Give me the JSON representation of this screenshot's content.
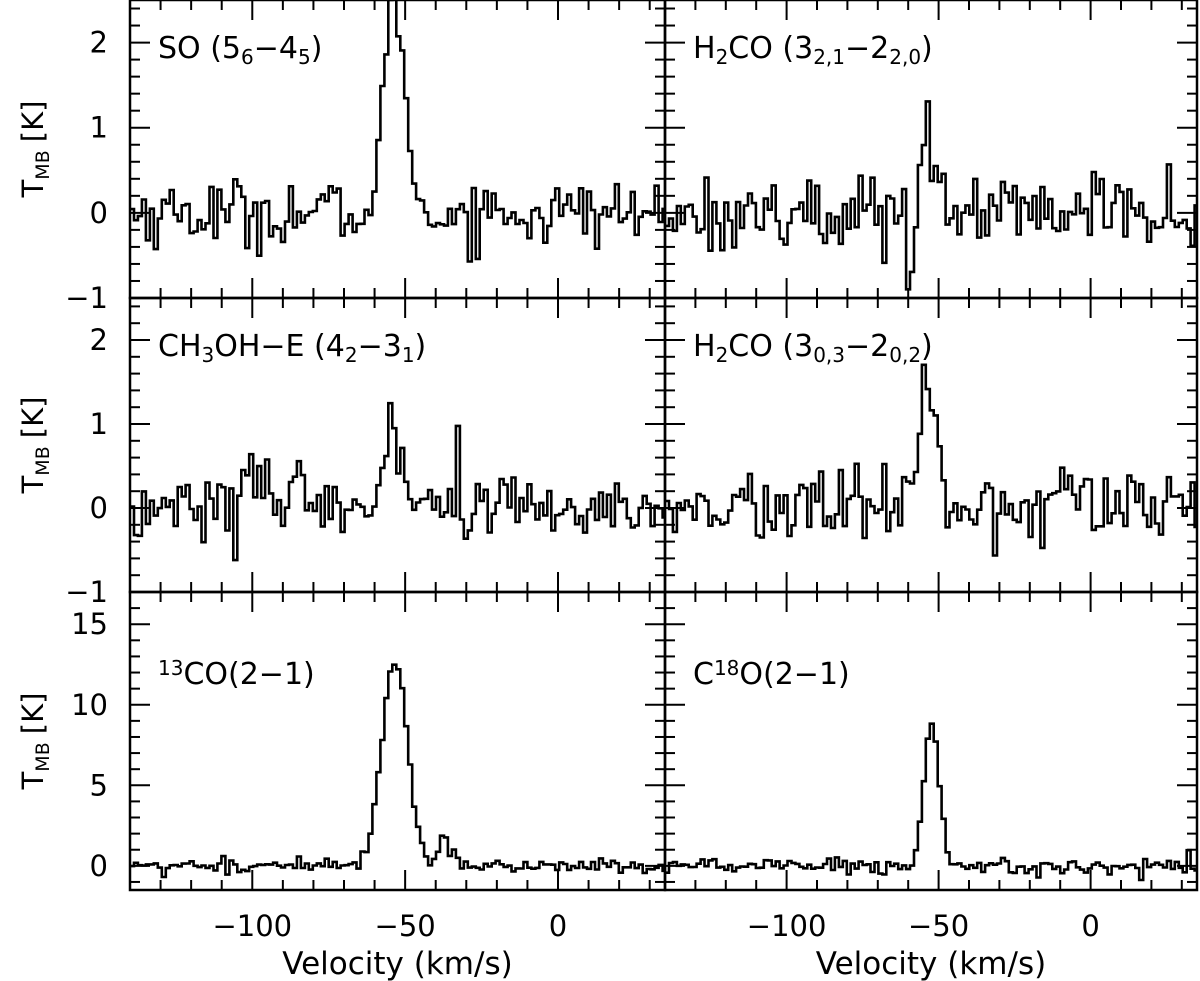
{
  "figure": {
    "xlabel": "Velocity (km/s)",
    "ylabel_main": "T",
    "ylabel_sub": "MB",
    "ylabel_unit": "[K]",
    "colors": {
      "line": "#000000",
      "background": "#ffffff"
    }
  },
  "chart_data": [
    {
      "type": "line",
      "label_parts": [
        {
          "t": "SO (5"
        },
        {
          "t": "6",
          "sub": true
        },
        {
          "t": "−4"
        },
        {
          "t": "5",
          "sub": true
        },
        {
          "t": ")"
        }
      ],
      "xlim": [
        -140,
        35
      ],
      "ylim": [
        -1,
        2.5
      ],
      "yticks": [
        -1,
        0,
        1,
        2
      ],
      "show_yticklabels": true,
      "show_xticklabels": false,
      "peak_velocity": -53,
      "peak_value": 2.0,
      "width": 3.0,
      "noise_rms": 0.2,
      "features": [
        {
          "x": -56,
          "y": 1.3,
          "w": 2
        }
      ]
    },
    {
      "type": "line",
      "label_parts": [
        {
          "t": "H"
        },
        {
          "t": "2",
          "sub": true
        },
        {
          "t": "CO (3"
        },
        {
          "t": "2,1",
          "sub": true
        },
        {
          "t": "−2"
        },
        {
          "t": "2,0",
          "sub": true
        },
        {
          "t": ")"
        }
      ],
      "xlim": [
        -140,
        35
      ],
      "ylim": [
        -1,
        2.5
      ],
      "yticks": [
        -1,
        0,
        1,
        2
      ],
      "show_yticklabels": false,
      "show_xticklabels": false,
      "peak_velocity": -54,
      "peak_value": 0.95,
      "width": 2.2,
      "noise_rms": 0.22,
      "features": [
        {
          "x": -60,
          "y": -0.85,
          "w": 0.8
        }
      ]
    },
    {
      "type": "line",
      "label_parts": [
        {
          "t": "CH"
        },
        {
          "t": "3",
          "sub": true
        },
        {
          "t": "OH−E (4"
        },
        {
          "t": "2",
          "sub": true
        },
        {
          "t": "−3"
        },
        {
          "t": "1",
          "sub": true
        },
        {
          "t": ")"
        }
      ],
      "xlim": [
        -140,
        35
      ],
      "ylim": [
        -1,
        2.5
      ],
      "yticks": [
        -1,
        0,
        1,
        2
      ],
      "show_yticklabels": true,
      "show_xticklabels": false,
      "peak_velocity": -54,
      "peak_value": 0.95,
      "width": 3.5,
      "noise_rms": 0.22,
      "features": [
        {
          "x": -102,
          "y": 0.6,
          "w": 2
        }
      ]
    },
    {
      "type": "line",
      "label_parts": [
        {
          "t": "H"
        },
        {
          "t": "2",
          "sub": true
        },
        {
          "t": "CO (3"
        },
        {
          "t": "0,3",
          "sub": true
        },
        {
          "t": "−2"
        },
        {
          "t": "0,2",
          "sub": true
        },
        {
          "t": ")"
        }
      ],
      "xlim": [
        -140,
        35
      ],
      "ylim": [
        -1,
        2.5
      ],
      "yticks": [
        -1,
        0,
        1,
        2
      ],
      "show_yticklabels": false,
      "show_xticklabels": false,
      "peak_velocity": -54,
      "peak_value": 1.8,
      "width": 2.3,
      "noise_rms": 0.22,
      "features": []
    },
    {
      "type": "line",
      "label_parts": [
        {
          "t": "13",
          "sup": true
        },
        {
          "t": "CO(2−1)"
        }
      ],
      "xlim": [
        -140,
        35
      ],
      "ylim": [
        -1.5,
        17
      ],
      "yticks": [
        0,
        5,
        10,
        15
      ],
      "show_yticklabels": true,
      "show_xticklabels": true,
      "xticks": [
        -100,
        -50,
        0
      ],
      "peak_velocity": -54,
      "peak_value": 13.0,
      "width": 4.2,
      "noise_rms": 0.25,
      "features": [
        {
          "x": -38,
          "y": 1.7,
          "w": 1.5
        }
      ]
    },
    {
      "type": "line",
      "label_parts": [
        {
          "t": "C"
        },
        {
          "t": "18",
          "sup": true
        },
        {
          "t": "O(2−1)"
        }
      ],
      "xlim": [
        -140,
        35
      ],
      "ylim": [
        -1.5,
        17
      ],
      "yticks": [
        0,
        5,
        10,
        15
      ],
      "show_yticklabels": false,
      "show_xticklabels": true,
      "xticks": [
        -100,
        -50,
        0
      ],
      "peak_velocity": -53,
      "peak_value": 9.0,
      "width": 2.5,
      "noise_rms": 0.25,
      "features": []
    }
  ]
}
